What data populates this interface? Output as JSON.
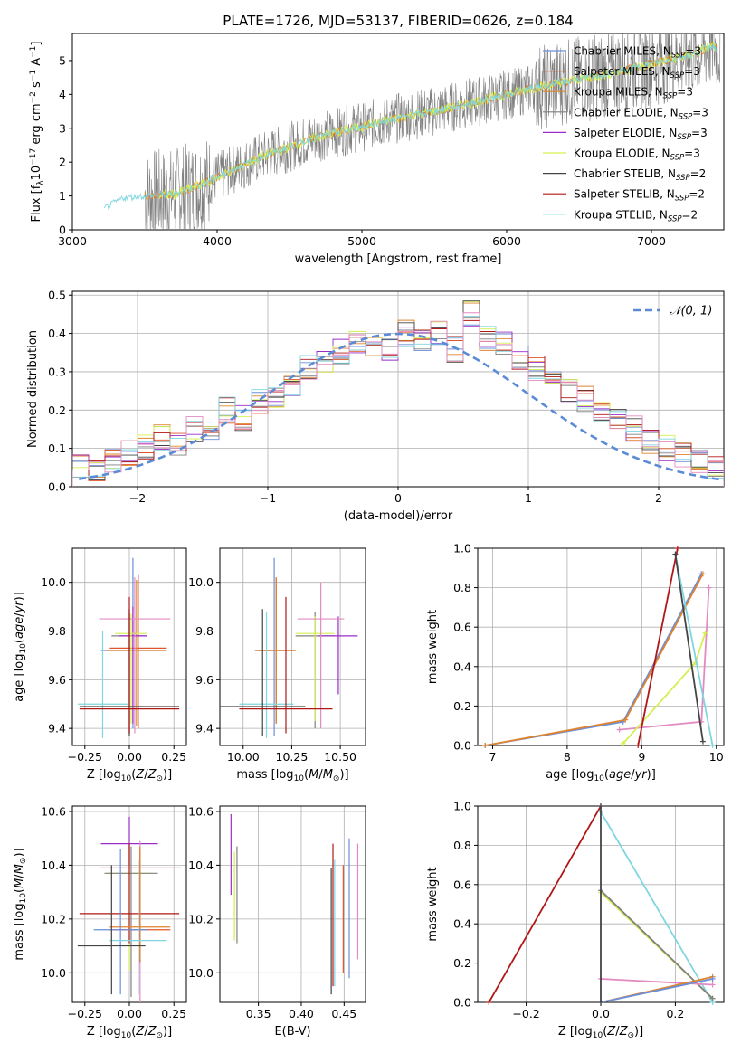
{
  "chart_data": [
    {
      "type": "line",
      "title": "PLATE=1726, MJD=53137, FIBERID=0626, z=0.184",
      "xlabel": "wavelength [Angstrom, rest frame]",
      "ylabel": "Flux [f_λ 10^-17 erg cm^-2 s^-1 A^-1]",
      "xlim": [
        3000,
        7500
      ],
      "ylim": [
        0,
        5.8
      ],
      "xticks": [
        "3000",
        "4000",
        "5000",
        "6000",
        "7000"
      ],
      "yticks": [
        "0",
        "1",
        "2",
        "3",
        "4",
        "5"
      ],
      "grid": false,
      "legend_position": "right",
      "data_series": {
        "x": [
          3220,
          3350,
          3500,
          3700,
          3900,
          4100,
          4300,
          4500,
          4700,
          4900,
          5100,
          5300,
          5500,
          5700,
          5900,
          6100,
          6300,
          6500,
          6700,
          6900,
          7100,
          7300,
          7420,
          7480
        ],
        "y": [
          0.62,
          0.95,
          1.0,
          1.05,
          1.35,
          1.75,
          2.15,
          2.45,
          2.75,
          2.95,
          3.15,
          3.35,
          3.5,
          3.7,
          3.9,
          4.1,
          4.3,
          4.45,
          4.6,
          4.8,
          5.0,
          5.2,
          5.45,
          5.3
        ]
      },
      "series": [
        {
          "name": "Chabrier MILES, N_SSP=3",
          "color": "#6a8fd8"
        },
        {
          "name": "Salpeter MILES, N_SSP=3",
          "color": "#e0562c"
        },
        {
          "name": "Kroupa MILES, N_SSP=3",
          "color": "#e0832e"
        },
        {
          "name": "Chabrier ELODIE, N_SSP=3",
          "color": "#808080"
        },
        {
          "name": "Salpeter ELODIE, N_SSP=3",
          "color": "#9b2dc7"
        },
        {
          "name": "Kroupa ELODIE, N_SSP=3",
          "color": "#d4ef4f"
        },
        {
          "name": "Chabrier STELIB, N_SSP=2",
          "color": "#444444"
        },
        {
          "name": "Salpeter STELIB, N_SSP=2",
          "color": "#b01717"
        },
        {
          "name": "Kroupa STELIB, N_SSP=2",
          "color": "#7fd6e0"
        }
      ]
    },
    {
      "type": "line",
      "xlabel": "(data-model)/error",
      "ylabel": "Normed distribution",
      "xlim": [
        -2.5,
        2.5
      ],
      "ylim": [
        0,
        0.51
      ],
      "xticks": [
        "−2",
        "−1",
        "0",
        "1",
        "2"
      ],
      "yticks": [
        "0.0",
        "0.1",
        "0.2",
        "0.3",
        "0.4",
        "0.5"
      ],
      "grid": true,
      "legend_position": "top-right",
      "legend": "𝒩(0, 1)",
      "histogram_bins": 40,
      "histogram_values": [
        0.05,
        0.05,
        0.07,
        0.09,
        0.1,
        0.13,
        0.11,
        0.15,
        0.13,
        0.2,
        0.18,
        0.22,
        0.24,
        0.27,
        0.31,
        0.33,
        0.35,
        0.38,
        0.37,
        0.35,
        0.4,
        0.38,
        0.4,
        0.36,
        0.45,
        0.39,
        0.37,
        0.34,
        0.31,
        0.28,
        0.25,
        0.23,
        0.2,
        0.17,
        0.15,
        0.12,
        0.1,
        0.08,
        0.07,
        0.05
      ]
    },
    {
      "type": "scatter",
      "xlabel": "Z [log10(Z/Z⊙)]",
      "ylabel": "age [log10(age/yr)]",
      "xlim": [
        -0.32,
        0.32
      ],
      "ylim": [
        9.33,
        10.14
      ],
      "xticks": [
        "−0.25",
        "0.00",
        "0.25"
      ],
      "yticks": [
        "9.4",
        "9.6",
        "9.8",
        "10.0"
      ],
      "grid": true,
      "points": [
        {
          "color": "#6a8fd8",
          "x": 0.02,
          "y": 9.72,
          "xerr": 0.18,
          "yerr_low": 0.32,
          "yerr_high": 0.38
        },
        {
          "color": "#e0562c",
          "x": 0.05,
          "y": 9.73,
          "xerr": 0.16,
          "yerr_low": 0.33,
          "yerr_high": 0.3
        },
        {
          "color": "#e0832e",
          "x": 0.04,
          "y": 9.72,
          "xerr": 0.17,
          "yerr_low": 0.31,
          "yerr_high": 0.29
        },
        {
          "color": "#808080",
          "x": 0.0,
          "y": 9.78,
          "xerr": 0.1,
          "yerr_low": 0.4,
          "yerr_high": 0.1
        },
        {
          "color": "#9b2dc7",
          "x": 0.02,
          "y": 9.78,
          "xerr": 0.08,
          "yerr_low": 0.36,
          "yerr_high": 0.12
        },
        {
          "color": "#d4ef4f",
          "x": 0.01,
          "y": 9.79,
          "xerr": 0.09,
          "yerr_low": 0.37,
          "yerr_high": 0.08
        },
        {
          "color": "#e38ac2",
          "x": 0.03,
          "y": 9.85,
          "xerr": 0.2,
          "yerr_low": 0.47,
          "yerr_high": 0.17
        },
        {
          "color": "#7fd6e0",
          "x": -0.15,
          "y": 9.5,
          "xerr": 0.14,
          "yerr_low": 0.14,
          "yerr_high": 0.3
        },
        {
          "color": "#444444",
          "x": 0.0,
          "y": 9.49,
          "xerr": 0.28,
          "yerr_low": 0.12,
          "yerr_high": 0.4
        },
        {
          "color": "#b01717",
          "x": 0.0,
          "y": 9.48,
          "xerr": 0.28,
          "yerr_low": 0.1,
          "yerr_high": 0.46
        }
      ]
    },
    {
      "type": "scatter",
      "xlabel": "mass [log10(M/M⊙)]",
      "xlim": [
        9.88,
        10.63
      ],
      "ylim": [
        9.33,
        10.14
      ],
      "xticks": [
        "10.00",
        "10.25",
        "10.50"
      ],
      "yticks": [
        "9.4",
        "9.6",
        "9.8",
        "10.0"
      ],
      "grid": true,
      "points": [
        {
          "color": "#6a8fd8",
          "x": 10.16,
          "y": 9.72,
          "xerr": 0.1,
          "yerr_low": 0.35,
          "yerr_high": 0.38
        },
        {
          "color": "#e0562c",
          "x": 10.17,
          "y": 9.72,
          "xerr": 0.1,
          "yerr_low": 0.3,
          "yerr_high": 0.3
        },
        {
          "color": "#e0832e",
          "x": 10.17,
          "y": 9.72,
          "xerr": 0.1,
          "yerr_low": 0.3,
          "yerr_high": 0.3
        },
        {
          "color": "#808080",
          "x": 10.37,
          "y": 9.78,
          "xerr": 0.1,
          "yerr_low": 0.38,
          "yerr_high": 0.1
        },
        {
          "color": "#9b2dc7",
          "x": 10.49,
          "y": 9.78,
          "xerr": 0.1,
          "yerr_low": 0.24,
          "yerr_high": 0.08
        },
        {
          "color": "#d4ef4f",
          "x": 10.37,
          "y": 9.79,
          "xerr": 0.1,
          "yerr_low": 0.36,
          "yerr_high": 0.07
        },
        {
          "color": "#e38ac2",
          "x": 10.4,
          "y": 9.85,
          "xerr": 0.12,
          "yerr_low": 0.45,
          "yerr_high": 0.15
        },
        {
          "color": "#7fd6e0",
          "x": 10.12,
          "y": 9.5,
          "xerr": 0.14,
          "yerr_low": 0.14,
          "yerr_high": 0.38
        },
        {
          "color": "#444444",
          "x": 10.1,
          "y": 9.49,
          "xerr": 0.22,
          "yerr_low": 0.12,
          "yerr_high": 0.4
        },
        {
          "color": "#b01717",
          "x": 10.22,
          "y": 9.48,
          "xerr": 0.24,
          "yerr_low": 0.1,
          "yerr_high": 0.46
        }
      ]
    },
    {
      "type": "line",
      "xlabel": "age [log10(age/yr)]",
      "ylabel": "mass weight",
      "xlim": [
        6.8,
        10.1
      ],
      "ylim": [
        0.0,
        1.0
      ],
      "xticks": [
        "7",
        "8",
        "9",
        "10"
      ],
      "yticks": [
        "0.0",
        "0.2",
        "0.4",
        "0.6",
        "0.8",
        "1.0"
      ],
      "grid": true,
      "series": [
        {
          "color": "#6a8fd8",
          "x": [
            6.9,
            8.75,
            9.8
          ],
          "y": [
            0.0,
            0.12,
            0.87
          ]
        },
        {
          "color": "#e0832e",
          "x": [
            6.9,
            8.78,
            9.82
          ],
          "y": [
            0.0,
            0.13,
            0.87
          ]
        },
        {
          "color": "#e38ac2",
          "x": [
            8.7,
            9.8,
            9.9
          ],
          "y": [
            0.08,
            0.12,
            0.8
          ]
        },
        {
          "color": "#d4ef4f",
          "x": [
            8.75,
            9.72,
            9.85
          ],
          "y": [
            0.01,
            0.42,
            0.57
          ]
        },
        {
          "color": "#7fd6e0",
          "x": [
            9.45,
            9.95
          ],
          "y": [
            0.97,
            0.0
          ]
        },
        {
          "color": "#b01717",
          "x": [
            8.95,
            9.48
          ],
          "y": [
            0.0,
            1.0
          ]
        },
        {
          "color": "#444444",
          "x": [
            9.45,
            9.82
          ],
          "y": [
            0.97,
            0.02
          ]
        }
      ]
    },
    {
      "type": "scatter",
      "xlabel": "Z [log10(Z/Z⊙)]",
      "ylabel": "mass [log10(M/M⊙)]",
      "xlim": [
        -0.32,
        0.32
      ],
      "ylim": [
        9.89,
        10.62
      ],
      "xticks": [
        "−0.25",
        "0.00",
        "0.25"
      ],
      "yticks": [
        "10.0",
        "10.2",
        "10.4",
        "10.6"
      ],
      "grid": true,
      "points": [
        {
          "color": "#9b2dc7",
          "x": 0.0,
          "y": 10.48,
          "xerr": 0.16,
          "yerr_low": 0.08,
          "yerr_high": 0.1
        },
        {
          "color": "#e38ac2",
          "x": 0.06,
          "y": 10.39,
          "xerr": 0.23,
          "yerr_low": 0.5,
          "yerr_high": 0.1
        },
        {
          "color": "#d4ef4f",
          "x": 0.0,
          "y": 10.37,
          "xerr": 0.13,
          "yerr_low": 0.36,
          "yerr_high": 0.1
        },
        {
          "color": "#808080",
          "x": 0.01,
          "y": 10.37,
          "xerr": 0.15,
          "yerr_low": 0.46,
          "yerr_high": 0.1
        },
        {
          "color": "#b01717",
          "x": 0.0,
          "y": 10.22,
          "xerr": 0.28,
          "yerr_low": 0.11,
          "yerr_high": 0.26
        },
        {
          "color": "#e0562c",
          "x": 0.06,
          "y": 10.16,
          "xerr": 0.17,
          "yerr_low": 0.12,
          "yerr_high": 0.3
        },
        {
          "color": "#e0832e",
          "x": 0.06,
          "y": 10.17,
          "xerr": 0.17,
          "yerr_low": 0.12,
          "yerr_high": 0.3
        },
        {
          "color": "#6a8fd8",
          "x": -0.05,
          "y": 10.16,
          "xerr": 0.15,
          "yerr_low": 0.24,
          "yerr_high": 0.3
        },
        {
          "color": "#7fd6e0",
          "x": 0.05,
          "y": 10.12,
          "xerr": 0.16,
          "yerr_low": 0.2,
          "yerr_high": 0.3
        },
        {
          "color": "#444444",
          "x": -0.1,
          "y": 10.1,
          "xerr": 0.19,
          "yerr_low": 0.18,
          "yerr_high": 0.3
        }
      ]
    },
    {
      "type": "scatter",
      "xlabel": "E(B-V)",
      "xlim": [
        0.305,
        0.475
      ],
      "ylim": [
        9.89,
        10.62
      ],
      "xticks": [
        "0.35",
        "0.40",
        "0.45"
      ],
      "yticks": [
        "10.0",
        "10.2",
        "10.4",
        "10.6"
      ],
      "grid": true,
      "points": [
        {
          "color": "#9b2dc7",
          "x": 0.318,
          "ylow": 10.29,
          "yhigh": 10.59
        },
        {
          "color": "#d4ef4f",
          "x": 0.322,
          "ylow": 10.12,
          "yhigh": 10.45
        },
        {
          "color": "#808080",
          "x": 0.325,
          "ylow": 10.11,
          "yhigh": 10.47
        },
        {
          "color": "#444444",
          "x": 0.435,
          "ylow": 9.92,
          "yhigh": 10.39
        },
        {
          "color": "#b01717",
          "x": 0.437,
          "ylow": 9.95,
          "yhigh": 10.48
        },
        {
          "color": "#7fd6e0",
          "x": 0.439,
          "ylow": 9.95,
          "yhigh": 10.42
        },
        {
          "color": "#e0562c",
          "x": 0.449,
          "ylow": 10.0,
          "yhigh": 10.4
        },
        {
          "color": "#6a8fd8",
          "x": 0.456,
          "ylow": 9.98,
          "yhigh": 10.5
        },
        {
          "color": "#e38ac2",
          "x": 0.466,
          "ylow": 10.05,
          "yhigh": 10.48
        }
      ]
    },
    {
      "type": "line",
      "xlabel": "Z [log10(Z/Z⊙)]",
      "ylabel": "mass weight",
      "xlim": [
        -0.33,
        0.33
      ],
      "ylim": [
        0.0,
        1.0
      ],
      "xticks": [
        "−0.2",
        "0.0",
        "0.2"
      ],
      "yticks": [
        "0.0",
        "0.2",
        "0.4",
        "0.6",
        "0.8",
        "1.0"
      ],
      "grid": true,
      "series": [
        {
          "color": "#b01717",
          "x": [
            -0.3,
            0.0
          ],
          "y": [
            0.0,
            1.0
          ]
        },
        {
          "color": "#7fd6e0",
          "x": [
            0.0,
            0.3
          ],
          "y": [
            0.97,
            0.0
          ]
        },
        {
          "color": "#d4ef4f",
          "x": [
            0.0,
            0.3
          ],
          "y": [
            0.56,
            0.02
          ]
        },
        {
          "color": "#808080",
          "x": [
            0.0,
            0.3
          ],
          "y": [
            0.57,
            0.02
          ]
        },
        {
          "color": "#e38ac2",
          "x": [
            0.0,
            0.3
          ],
          "y": [
            0.12,
            0.09
          ]
        },
        {
          "color": "#e0832e",
          "x": [
            0.0,
            0.3
          ],
          "y": [
            0.0,
            0.13
          ]
        },
        {
          "color": "#6a8fd8",
          "x": [
            0.0,
            0.3
          ],
          "y": [
            0.0,
            0.12
          ]
        },
        {
          "color": "#444444",
          "x": [
            0.0,
            0.0
          ],
          "y": [
            0.0,
            1.0
          ]
        }
      ]
    }
  ]
}
